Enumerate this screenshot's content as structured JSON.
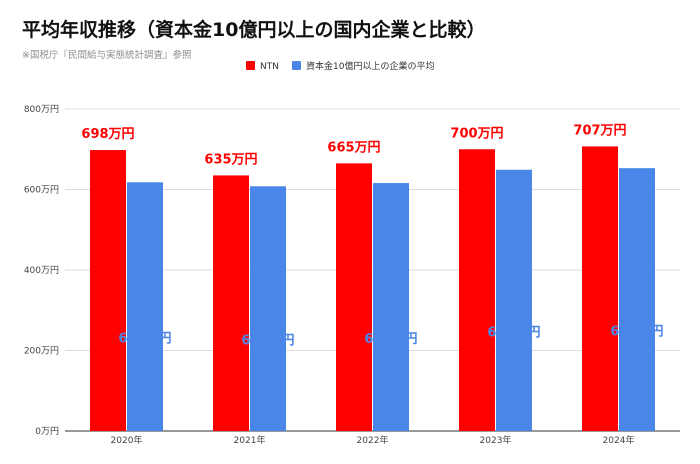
{
  "chart_data": {
    "type": "bar",
    "title": "平均年収推移（資本金10億円以上の国内企業と比較）",
    "subtitle": "※国税庁『民間給与実態統計調査』参照",
    "xlabel": "",
    "ylabel": "",
    "categories": [
      "2020年",
      "2021年",
      "2022年",
      "2023年",
      "2024年"
    ],
    "ylim": [
      0,
      800
    ],
    "yticks": [
      0,
      200,
      400,
      600,
      800
    ],
    "ytick_labels": [
      "0万円",
      "200万円",
      "400万円",
      "600万円",
      "800万円"
    ],
    "grid": true,
    "legend_position": "top-center",
    "series": [
      {
        "name": "NTN",
        "color": "#ff0000",
        "values": [
          698,
          635,
          665,
          700,
          707
        ],
        "labels": [
          "698万円",
          "635万円",
          "665万円",
          "700万円",
          "707万円"
        ]
      },
      {
        "name": "資本金10億円以上の企業の平均",
        "color": "#4a86e8",
        "values": [
          618,
          608,
          616,
          649,
          653
        ],
        "labels": [
          "618万円",
          "608万円",
          "616万円",
          "649万円",
          "653万円"
        ]
      }
    ]
  }
}
